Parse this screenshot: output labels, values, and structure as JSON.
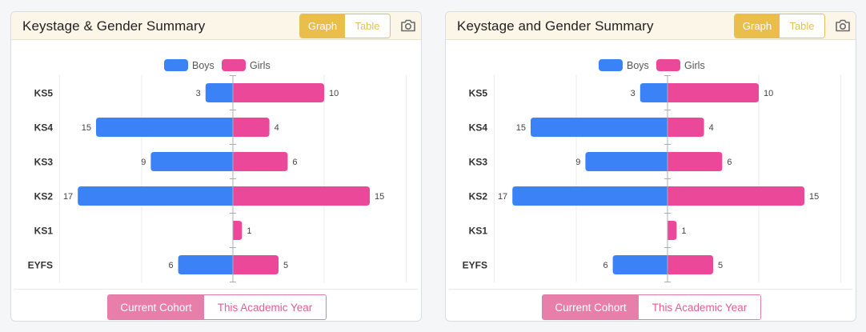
{
  "panels": [
    {
      "title": "Keystage & Gender Summary",
      "toggle": {
        "graph": "Graph",
        "table": "Table",
        "active": "graph"
      },
      "camera_icon": "camera-icon",
      "cohort": {
        "current": "Current Cohort",
        "academic": "This Academic Year",
        "active": "current"
      }
    },
    {
      "title": "Keystage and Gender Summary",
      "toggle": {
        "graph": "Graph",
        "table": "Table",
        "active": "graph"
      },
      "camera_icon": "camera-icon",
      "cohort": {
        "current": "Current Cohort",
        "academic": "This Academic Year",
        "active": "current"
      }
    }
  ],
  "colors": {
    "boys": "#3b82f6",
    "girls": "#ec4899",
    "header_bg": "#fcf6e8",
    "toggle_active": "#e9be4b",
    "cohort_active": "#e87fab"
  },
  "chart_data": [
    {
      "type": "bar",
      "orientation": "horizontal-diverging",
      "categories": [
        "KS5",
        "KS4",
        "KS3",
        "KS2",
        "KS1",
        "EYFS"
      ],
      "series": [
        {
          "name": "Boys",
          "values": [
            3,
            15,
            9,
            17,
            0,
            6
          ]
        },
        {
          "name": "Girls",
          "values": [
            10,
            4,
            6,
            15,
            1,
            5
          ]
        }
      ],
      "xlim": [
        -19,
        19
      ],
      "xticks": [
        "19",
        "10",
        "0",
        "10",
        "19"
      ],
      "legend": "top-center",
      "grid": true
    },
    {
      "type": "bar",
      "orientation": "horizontal-diverging",
      "categories": [
        "KS5",
        "KS4",
        "KS3",
        "KS2",
        "KS1",
        "EYFS"
      ],
      "series": [
        {
          "name": "Boys",
          "values": [
            3,
            15,
            9,
            17,
            0,
            6
          ]
        },
        {
          "name": "Girls",
          "values": [
            10,
            4,
            6,
            15,
            1,
            5
          ]
        }
      ],
      "xlim": [
        -19,
        19
      ],
      "xticks": [
        "19",
        "10",
        "0",
        "10",
        "19"
      ],
      "legend": "top-center",
      "grid": true
    }
  ]
}
